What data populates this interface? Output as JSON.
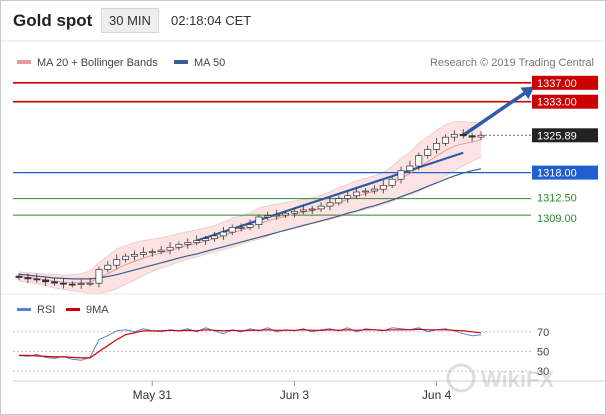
{
  "header": {
    "title": "Gold spot",
    "timeframe": "30 MIN",
    "timestamp": "02:18:04 CET"
  },
  "colors": {
    "resistance": "#cc0000",
    "current": "#222222",
    "pivot": "#1f5fd1",
    "support": "#2e8b2e",
    "ma20": "#e89a9a",
    "bollinger_fill": "#fbe3e3",
    "ma50": "#3b5d93",
    "candle_up": "#ffffff",
    "candle_down": "#333333",
    "rsi": "#5b7fd6",
    "rsi_ma": "#cc0000",
    "arrow": "#2e5aa8"
  },
  "chart_data": [
    {
      "type": "line",
      "name": "price",
      "legend": [
        {
          "label": "MA 20 + Bollinger Bands",
          "color": "#e89a9a"
        },
        {
          "label": "MA 50",
          "color": "#3b5d93"
        }
      ],
      "credit": "Research © 2019 Trading Central",
      "x_ticks": [
        "May 31",
        "Jun 3",
        "Jun 4"
      ],
      "ylim": [
        1294.0,
        1339.5
      ],
      "levels": [
        {
          "label": "1337.00",
          "value": 1337.0,
          "kind": "resistance"
        },
        {
          "label": "1333.00",
          "value": 1333.0,
          "kind": "resistance"
        },
        {
          "label": "1325.89",
          "value": 1325.89,
          "kind": "current"
        },
        {
          "label": "1318.00",
          "value": 1318.0,
          "kind": "pivot"
        },
        {
          "label": "1312.50",
          "value": 1312.5,
          "kind": "support"
        },
        {
          "label": "1309.00",
          "value": 1309.0,
          "kind": "support"
        }
      ],
      "close": [
        1295.8,
        1295.5,
        1295.3,
        1294.9,
        1294.6,
        1294.4,
        1294.3,
        1294.5,
        1294.6,
        1297.5,
        1298.4,
        1299.6,
        1300.3,
        1300.7,
        1301.1,
        1301.3,
        1301.6,
        1302.2,
        1302.8,
        1303.2,
        1303.6,
        1304.0,
        1304.6,
        1305.4,
        1306.4,
        1306.4,
        1307.0,
        1308.6,
        1308.9,
        1309.0,
        1309.4,
        1309.8,
        1310.1,
        1310.3,
        1310.9,
        1311.6,
        1312.5,
        1313.1,
        1313.9,
        1314.1,
        1314.5,
        1315.3,
        1316.6,
        1318.4,
        1319.4,
        1321.6,
        1322.9,
        1324.2,
        1325.5,
        1326.1,
        1325.8,
        1325.5,
        1325.89
      ],
      "ma20": [
        1296.0,
        1295.8,
        1295.6,
        1295.3,
        1295.0,
        1294.8,
        1294.7,
        1294.7,
        1294.8,
        1295.7,
        1296.6,
        1297.6,
        1298.5,
        1299.2,
        1299.9,
        1300.5,
        1301.0,
        1301.5,
        1302.1,
        1302.6,
        1303.0,
        1303.5,
        1304.0,
        1304.6,
        1305.3,
        1305.8,
        1306.4,
        1307.2,
        1307.8,
        1308.3,
        1308.8,
        1309.2,
        1309.6,
        1309.9,
        1310.4,
        1311.0,
        1311.7,
        1312.3,
        1313.0,
        1313.5,
        1314.0,
        1314.7,
        1315.6,
        1316.8,
        1317.8,
        1319.1,
        1320.3,
        1321.5,
        1322.7,
        1323.6,
        1324.1,
        1324.5,
        1324.9
      ],
      "bb_upper": [
        1297.0,
        1296.8,
        1296.7,
        1296.5,
        1296.4,
        1296.3,
        1296.4,
        1296.6,
        1297.2,
        1299.0,
        1300.4,
        1301.8,
        1302.6,
        1303.2,
        1303.6,
        1303.9,
        1304.2,
        1304.6,
        1305.1,
        1305.5,
        1305.9,
        1306.3,
        1306.8,
        1307.5,
        1308.4,
        1308.8,
        1309.4,
        1310.5,
        1311.0,
        1311.3,
        1311.7,
        1312.0,
        1312.3,
        1312.6,
        1313.2,
        1313.9,
        1314.8,
        1315.5,
        1316.3,
        1316.8,
        1317.3,
        1318.1,
        1319.3,
        1321.0,
        1322.3,
        1324.2,
        1325.6,
        1326.9,
        1328.1,
        1328.8,
        1328.8,
        1328.6,
        1328.6
      ],
      "bb_lower": [
        1295.0,
        1294.8,
        1294.5,
        1294.1,
        1293.6,
        1293.3,
        1293.0,
        1292.8,
        1292.4,
        1292.4,
        1292.8,
        1293.4,
        1294.4,
        1295.2,
        1296.2,
        1297.1,
        1297.8,
        1298.4,
        1299.1,
        1299.7,
        1300.1,
        1300.7,
        1301.2,
        1301.7,
        1302.2,
        1302.8,
        1303.4,
        1303.9,
        1304.6,
        1305.3,
        1305.9,
        1306.4,
        1306.9,
        1307.2,
        1307.6,
        1308.1,
        1308.6,
        1309.1,
        1309.7,
        1310.2,
        1310.7,
        1311.3,
        1311.9,
        1312.6,
        1313.3,
        1314.0,
        1315.0,
        1316.1,
        1317.3,
        1318.4,
        1319.4,
        1320.4,
        1321.2
      ],
      "ma50": [
        1296.5,
        1296.3,
        1296.1,
        1295.9,
        1295.7,
        1295.6,
        1295.5,
        1295.5,
        1295.5,
        1295.7,
        1296.0,
        1296.4,
        1296.9,
        1297.4,
        1297.9,
        1298.4,
        1298.9,
        1299.4,
        1299.9,
        1300.4,
        1300.8,
        1301.3,
        1301.8,
        1302.3,
        1302.8,
        1303.3,
        1303.8,
        1304.3,
        1304.8,
        1305.3,
        1305.8,
        1306.3,
        1306.8,
        1307.3,
        1307.8,
        1308.3,
        1308.8,
        1309.4,
        1309.9,
        1310.5,
        1311.0,
        1311.6,
        1312.2,
        1312.9,
        1313.6,
        1314.3,
        1315.1,
        1315.8,
        1316.6,
        1317.3,
        1317.9,
        1318.4,
        1318.8
      ],
      "trendline": {
        "from": {
          "i": 20,
          "value": 1303.6
        },
        "to": {
          "i": 50,
          "value": 1322.2
        }
      },
      "arrow": {
        "from": {
          "i": 50,
          "value": 1325.9
        },
        "to": {
          "i": 58,
          "value": 1336.2
        }
      }
    },
    {
      "type": "line",
      "name": "rsi",
      "legend": [
        {
          "label": "RSI",
          "color": "#5b7fd6"
        },
        {
          "label": "9MA",
          "color": "#cc0000"
        }
      ],
      "ylim": [
        20,
        85
      ],
      "y_ticks": [
        {
          "label": "70",
          "value": 70
        },
        {
          "label": "50",
          "value": 50
        },
        {
          "label": "30",
          "value": 30
        }
      ],
      "rsi": [
        46,
        45,
        47,
        44,
        43,
        45,
        42,
        41,
        44,
        62,
        66,
        71,
        72,
        70,
        73,
        71,
        70,
        72,
        71,
        73,
        70,
        74,
        71,
        68,
        72,
        70,
        73,
        71,
        74,
        70,
        72,
        71,
        73,
        70,
        72,
        73,
        71,
        74,
        70,
        73,
        72,
        71,
        74,
        73,
        72,
        74,
        70,
        72,
        73,
        71,
        68,
        66,
        67
      ],
      "rsi_ma": [
        46,
        46,
        45.5,
        45,
        44.5,
        44.5,
        44,
        43.5,
        43.5,
        50,
        56,
        62,
        67,
        69,
        71,
        71,
        71,
        71.5,
        71,
        71.5,
        71,
        72,
        71.5,
        71,
        71.5,
        71,
        71.5,
        71.5,
        72,
        71.5,
        71.5,
        71.5,
        72,
        71.5,
        71.5,
        72,
        71.5,
        72,
        71.5,
        72,
        72,
        71.5,
        72,
        72,
        72,
        72.5,
        72,
        72,
        72,
        71.5,
        71,
        70,
        69
      ]
    }
  ]
}
